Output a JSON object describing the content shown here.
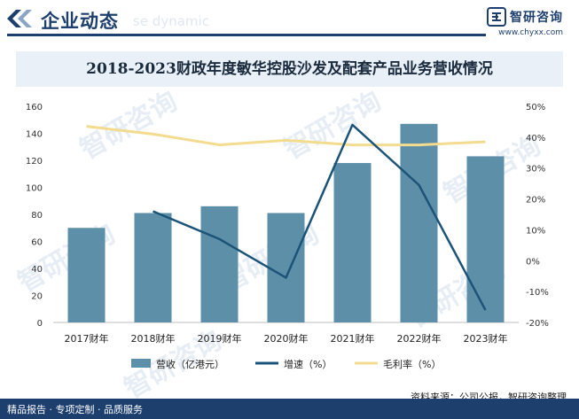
{
  "header": {
    "title": "企业动态",
    "ghost_text": "se dynamic",
    "logo_name": "智研咨询",
    "logo_url": "www.chyxx.com"
  },
  "footer": {
    "left_text": "精品报告 · 专项定制 · 品质服务",
    "source_text": "资料来源：公司公报，智研咨询整理",
    "watermark_text": "智研咨询"
  },
  "colors": {
    "bar": "#5e8fa8",
    "growth_line": "#1b5478",
    "margin_line": "#f3dc8f",
    "brand": "#1d3f6e"
  },
  "chart_data": {
    "type": "bar",
    "title": "2018-2023财政年度敏华控股沙发及配套产品业务营收情况",
    "categories": [
      "2017财年",
      "2018财年",
      "2019财年",
      "2020财年",
      "2021财年",
      "2022财年",
      "2023财年"
    ],
    "left_axis": {
      "min": 0,
      "max": 160,
      "ticks": [
        "0",
        "20",
        "40",
        "60",
        "80",
        "100",
        "120",
        "140",
        "160"
      ]
    },
    "right_axis": {
      "min": -20,
      "max": 50,
      "ticks": [
        "-20%",
        "-10%",
        "0%",
        "10%",
        "20%",
        "30%",
        "40%",
        "50%"
      ]
    },
    "series": [
      {
        "name": "营收（亿港元）",
        "type": "bar",
        "axis": "left",
        "values": [
          70,
          81,
          86,
          81,
          118,
          147,
          123
        ]
      },
      {
        "name": "增速（%）",
        "type": "line",
        "axis": "right",
        "values": [
          null,
          16,
          7,
          -5.5,
          44,
          24.5,
          -16
        ]
      },
      {
        "name": "毛利率（%）",
        "type": "line",
        "axis": "right",
        "values": [
          43.5,
          41,
          37.5,
          39,
          37.5,
          37.5,
          38.5
        ]
      }
    ],
    "legend_position": "bottom",
    "grid": false
  }
}
